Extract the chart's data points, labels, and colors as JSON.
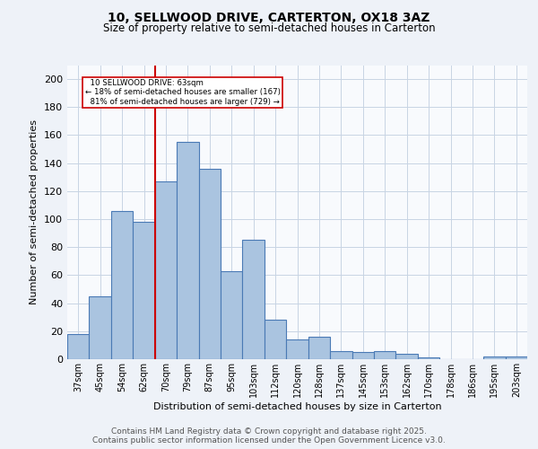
{
  "title_line1": "10, SELLWOOD DRIVE, CARTERTON, OX18 3AZ",
  "title_line2": "Size of property relative to semi-detached houses in Carterton",
  "categories": [
    "37sqm",
    "45sqm",
    "54sqm",
    "62sqm",
    "70sqm",
    "79sqm",
    "87sqm",
    "95sqm",
    "103sqm",
    "112sqm",
    "120sqm",
    "128sqm",
    "137sqm",
    "145sqm",
    "153sqm",
    "162sqm",
    "170sqm",
    "178sqm",
    "186sqm",
    "195sqm",
    "203sqm"
  ],
  "values": [
    18,
    45,
    106,
    98,
    127,
    155,
    136,
    63,
    85,
    28,
    14,
    16,
    6,
    5,
    6,
    4,
    1,
    0,
    0,
    2,
    2
  ],
  "bar_color": "#aac4e0",
  "bar_edgecolor": "#4a7ab5",
  "property_line_index": 3,
  "property_label": "10 SELLWOOD DRIVE: 63sqm",
  "smaller_pct": "18%",
  "smaller_count": 167,
  "larger_pct": "81%",
  "larger_count": 729,
  "xlabel": "Distribution of semi-detached houses by size in Carterton",
  "ylabel": "Number of semi-detached properties",
  "footer_line1": "Contains HM Land Registry data © Crown copyright and database right 2025.",
  "footer_line2": "Contains public sector information licensed under the Open Government Licence v3.0.",
  "ylim": [
    0,
    210
  ],
  "yticks": [
    0,
    20,
    40,
    60,
    80,
    100,
    120,
    140,
    160,
    180,
    200
  ],
  "bg_color": "#eef2f8",
  "plot_bg_color": "#f8fafd",
  "grid_color": "#c8d4e4",
  "line_color": "#cc0000",
  "title_fontsize": 10,
  "subtitle_fontsize": 8.5,
  "xlabel_fontsize": 8,
  "ylabel_fontsize": 8,
  "tick_fontsize": 7,
  "footer_fontsize": 6.5
}
